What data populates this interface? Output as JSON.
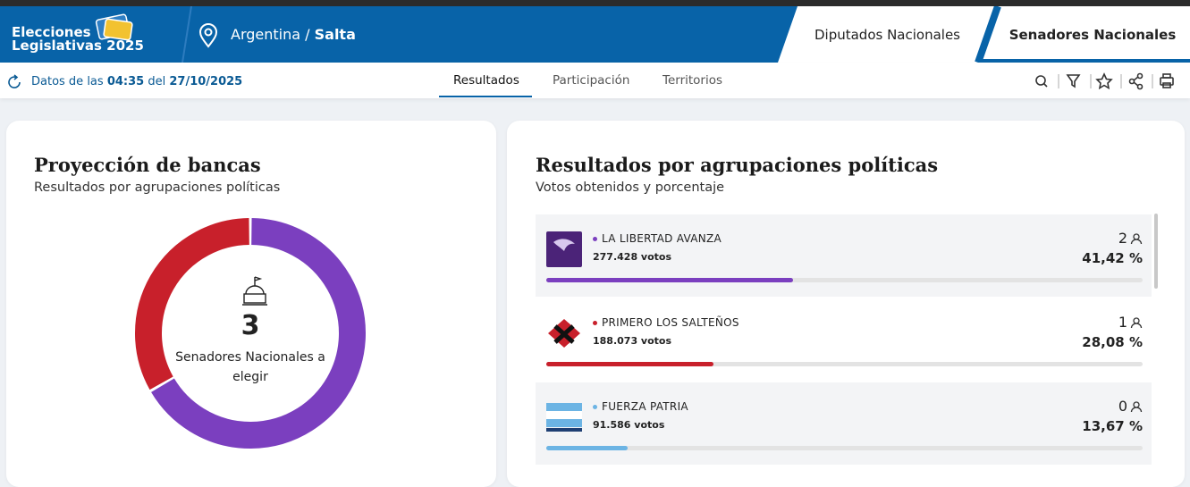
{
  "header": {
    "logo": [
      "Elecciones",
      "Legislativas 2025"
    ],
    "breadcrumb": {
      "country": "Argentina",
      "separator": "/",
      "province": "Salta"
    },
    "tabs": [
      "Diputados Nacionales",
      "Senadores Nacionales"
    ],
    "active_tab": 1
  },
  "subbar": {
    "updated": {
      "prefix": "Datos de las",
      "time": "04:35",
      "middle": "del",
      "date": "27/10/2025"
    },
    "nav": [
      "Resultados",
      "Participación",
      "Territorios"
    ],
    "active_nav": 0
  },
  "seats_card": {
    "title": "Proyección de bancas",
    "subtitle": "Resultados por agrupaciones políticas",
    "total_seats": 3,
    "center_label": "Senadores Nacionales a elegir"
  },
  "results_card": {
    "title": "Resultados por agrupaciones políticas",
    "subtitle": "Votos obtenidos y porcentaje",
    "parties": [
      {
        "name": "LA LIBERTAD AVANZA",
        "votes": "277.428 votos",
        "seats": 2,
        "percent": 41.42,
        "percent_label": "41,42 %",
        "color": "#7b3fbf"
      },
      {
        "name": "PRIMERO LOS SALTEÑOS",
        "votes": "188.073 votos",
        "seats": 1,
        "percent": 28.08,
        "percent_label": "28,08 %",
        "color": "#c8202b"
      },
      {
        "name": "FUERZA PATRIA",
        "votes": "91.586 votos",
        "seats": 0,
        "percent": 13.67,
        "percent_label": "13,67 %",
        "color": "#6cb4e4"
      }
    ]
  }
}
